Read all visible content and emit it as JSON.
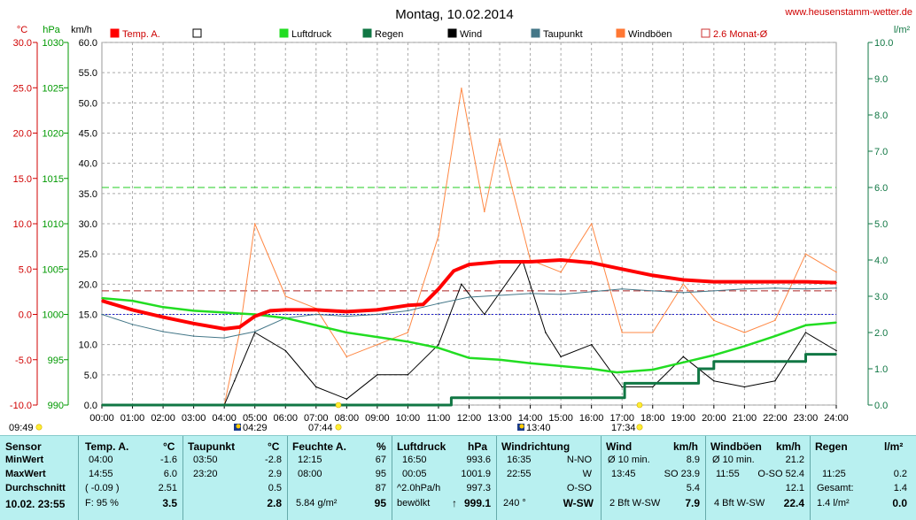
{
  "header": {
    "title": "Montag, 10.02.2014",
    "website": "www.heusenstamm-wetter.de",
    "unit_temp": "°C",
    "unit_press": "hPa",
    "unit_wind": "km/h",
    "unit_rain": "l/m²"
  },
  "legend": [
    {
      "label": "Temp. A.",
      "color": "#ff0000",
      "style": "filled"
    },
    {
      "label": "",
      "color": "#000000",
      "style": "outline"
    },
    {
      "label": "Luftdruck",
      "color": "#22dd22",
      "style": "filled"
    },
    {
      "label": "Regen",
      "color": "#117744",
      "style": "filled"
    },
    {
      "label": "Wind",
      "color": "#000000",
      "style": "filled"
    },
    {
      "label": "Taupunkt",
      "color": "#447788",
      "style": "filled"
    },
    {
      "label": "Windböen",
      "color": "#ff7733",
      "style": "filled"
    },
    {
      "label": "2.6 Monat-Ø",
      "color": "#cc3333",
      "style": "outline"
    }
  ],
  "sun": {
    "rise": "07:44",
    "set": "17:34",
    "moon_rise": "04:29",
    "moon_set": "13:40",
    "left_time": "09:49"
  },
  "chart_data": {
    "type": "line",
    "x_ticks": [
      "00:00",
      "01:00",
      "02:00",
      "03:00",
      "04:00",
      "05:00",
      "06:00",
      "07:00",
      "08:00",
      "09:00",
      "10:00",
      "11:00",
      "12:00",
      "13:00",
      "14:00",
      "15:00",
      "16:00",
      "17:00",
      "18:00",
      "19:00",
      "20:00",
      "21:00",
      "22:00",
      "23:00",
      "24:00"
    ],
    "axes": {
      "temp": {
        "label": "°C",
        "min": -10,
        "max": 30,
        "ticks": [
          "30.0",
          "25.0",
          "20.0",
          "15.0",
          "10.0",
          "5.0",
          "0.0",
          "-5.0",
          "-10.0"
        ]
      },
      "press": {
        "label": "hPa",
        "min": 990,
        "max": 1030,
        "ticks": [
          "1030",
          "1025",
          "1020",
          "1015",
          "1010",
          "1005",
          "1000",
          "995",
          "990"
        ]
      },
      "wind": {
        "label": "km/h",
        "min": 0,
        "max": 60,
        "ticks": [
          "60.0",
          "55.0",
          "50.0",
          "45.0",
          "40.0",
          "35.0",
          "30.0",
          "25.0",
          "20.0",
          "15.0",
          "10.0",
          "5.0",
          "0.0"
        ]
      },
      "rain": {
        "label": "l/m²",
        "min": 0,
        "max": 10,
        "ticks": [
          "10.0",
          "9.0",
          "8.0",
          "7.0",
          "6.0",
          "5.0",
          "4.0",
          "3.0",
          "2.0",
          "1.0",
          "0.0"
        ]
      }
    },
    "reference_lines": {
      "avg_temp_2_6_month": 2.6,
      "freezing": 0.0,
      "pressure_ref_1014": 1014.0
    },
    "series": [
      {
        "name": "Temp. A.",
        "axis": "temp",
        "x": [
          "00:00",
          "01:00",
          "02:00",
          "03:00",
          "04:00",
          "04:30",
          "05:00",
          "05:30",
          "06:00",
          "07:00",
          "08:00",
          "09:00",
          "10:00",
          "10:30",
          "11:00",
          "11:30",
          "12:00",
          "13:00",
          "14:00",
          "15:00",
          "16:00",
          "17:00",
          "18:00",
          "19:00",
          "20:00",
          "21:00",
          "22:00",
          "23:00",
          "24:00"
        ],
        "values": [
          1.5,
          0.5,
          -0.3,
          -1.0,
          -1.6,
          -1.4,
          -0.2,
          0.4,
          0.5,
          0.5,
          0.3,
          0.5,
          1.0,
          1.1,
          2.8,
          4.8,
          5.5,
          5.8,
          5.8,
          6.0,
          5.7,
          5.0,
          4.3,
          3.8,
          3.6,
          3.6,
          3.6,
          3.6,
          3.5
        ]
      },
      {
        "name": "Taupunkt",
        "axis": "temp",
        "x": [
          "00:00",
          "01:00",
          "02:00",
          "03:00",
          "04:00",
          "05:00",
          "06:00",
          "07:00",
          "08:00",
          "09:00",
          "10:00",
          "11:00",
          "12:00",
          "13:00",
          "14:00",
          "15:00",
          "16:00",
          "17:00",
          "18:00",
          "19:00",
          "20:00",
          "21:00",
          "22:00",
          "23:00",
          "24:00"
        ],
        "values": [
          0.0,
          -1.1,
          -1.9,
          -2.4,
          -2.6,
          -1.9,
          -0.4,
          0.0,
          -0.2,
          0.0,
          0.4,
          1.2,
          1.9,
          2.1,
          2.3,
          2.2,
          2.5,
          2.8,
          2.6,
          2.4,
          2.6,
          2.8,
          2.9,
          2.8,
          2.9
        ]
      },
      {
        "name": "Luftdruck",
        "axis": "press",
        "x": [
          "00:00",
          "01:00",
          "02:00",
          "03:00",
          "04:00",
          "05:00",
          "06:00",
          "07:00",
          "08:00",
          "09:00",
          "10:00",
          "11:00",
          "12:00",
          "13:00",
          "14:00",
          "15:00",
          "16:00",
          "16:50",
          "18:00",
          "19:00",
          "20:00",
          "21:00",
          "22:00",
          "23:00",
          "24:00"
        ],
        "values": [
          1001.8,
          1001.5,
          1000.8,
          1000.4,
          1000.2,
          1000.0,
          999.6,
          998.8,
          998.0,
          997.5,
          997.0,
          996.3,
          995.2,
          995.0,
          994.6,
          994.3,
          994.0,
          993.6,
          993.9,
          994.7,
          995.5,
          996.5,
          997.6,
          998.8,
          999.1
        ]
      },
      {
        "name": "Regen",
        "axis": "rain",
        "x": [
          "00:00",
          "11:25",
          "17:05",
          "17:30",
          "18:30",
          "19:30",
          "20:00",
          "21:00",
          "22:00",
          "23:00",
          "23:30",
          "24:00"
        ],
        "values": [
          0.0,
          0.2,
          0.6,
          0.6,
          0.6,
          1.0,
          1.2,
          1.2,
          1.2,
          1.4,
          1.4,
          1.4
        ]
      },
      {
        "name": "Wind",
        "axis": "wind",
        "x": [
          "00:00",
          "04:00",
          "04:20",
          "05:00",
          "06:00",
          "07:00",
          "08:00",
          "09:00",
          "10:00",
          "11:00",
          "11:45",
          "12:30",
          "13:45",
          "14:30",
          "15:00",
          "16:00",
          "17:00",
          "18:00",
          "19:00",
          "20:00",
          "21:00",
          "22:00",
          "23:00",
          "24:00"
        ],
        "values": [
          0.0,
          0.0,
          4.0,
          12.0,
          9.0,
          3.0,
          1.0,
          5.0,
          5.0,
          10.0,
          20.0,
          15.0,
          23.9,
          12.0,
          8.0,
          10.0,
          3.0,
          3.0,
          8.0,
          4.0,
          3.0,
          4.0,
          12.0,
          9.0
        ]
      },
      {
        "name": "Windböen",
        "axis": "wind",
        "x": [
          "00:00",
          "04:00",
          "04:30",
          "05:00",
          "06:00",
          "07:00",
          "08:00",
          "09:00",
          "10:00",
          "11:00",
          "11:45",
          "12:30",
          "13:00",
          "14:00",
          "15:00",
          "16:00",
          "17:00",
          "18:00",
          "19:00",
          "20:00",
          "21:00",
          "22:00",
          "23:00",
          "24:00"
        ],
        "values": [
          0.0,
          0.0,
          12.0,
          30.0,
          18.0,
          16.0,
          8.0,
          10.0,
          12.0,
          28.0,
          52.4,
          32.0,
          44.0,
          24.0,
          22.0,
          30.0,
          12.0,
          12.0,
          20.0,
          14.0,
          12.0,
          14.0,
          25.0,
          22.0
        ]
      }
    ]
  },
  "table": {
    "row_labels": [
      "Sensor",
      "MinWert",
      "MaxWert",
      "Durchschnitt"
    ],
    "date_cell": "10.02.  23:55",
    "temp": {
      "head": "Temp. A.",
      "unit": "°C",
      "min_time": "04:00",
      "min": "-1.6",
      "max_time": "14:55",
      "max": "6.0",
      "avg_paren": "( -0.09 )",
      "avg": "2.51",
      "hum_label": "F: 95 %",
      "current": "3.5"
    },
    "dew": {
      "head": "Taupunkt",
      "unit": "°C",
      "min_time": "03:50",
      "min": "-2.8",
      "max_time": "23:20",
      "max": "2.9",
      "avg": "0.5",
      "current": "2.8"
    },
    "hum": {
      "head": "Feuchte A.",
      "unit": "%",
      "min_time": "12:15",
      "min": "67",
      "max_time": "08:00",
      "max": "95",
      "avg": "87",
      "abs": "5.84 g/m²",
      "current": "95"
    },
    "press": {
      "head": "Luftdruck",
      "unit": "hPa",
      "min_time": "16:50",
      "min": "993.6",
      "max_time": "00:05",
      "max": "1001.9",
      "trend": "^2.0hPa/h",
      "avg": "997.3",
      "weather": "bewölkt",
      "current": "999.1",
      "arrow": "↑"
    },
    "winddir": {
      "head": "Windrichtung",
      "min_time": "16:35",
      "min": "N-NO",
      "max_time": "22:55",
      "max": "W",
      "avg": "O-SO",
      "deg": "240 °",
      "current": "W-SW"
    },
    "wind": {
      "head": "Wind",
      "unit": "km/h",
      "avg_label": "Ø 10 min.",
      "avg10": "8.9",
      "max_time": "13:45",
      "max": "SO 23.9",
      "avg": "5.4",
      "bft": "2 Bft W-SW",
      "current": "7.9"
    },
    "gust": {
      "head": "Windböen",
      "unit": "km/h",
      "avg_label": "Ø 10 min.",
      "avg10": "21.2",
      "max_time": "11:55",
      "max": "O-SO 52.4",
      "avg": "12.1",
      "bft": "4 Bft W-SW",
      "current": "22.4"
    },
    "rain": {
      "head": "Regen",
      "unit": "l/m²",
      "max_time": "11:25",
      "max": "0.2",
      "total_label": "Gesamt:",
      "total": "1.4",
      "current_l": "1.4 l/m²",
      "current": "0.0"
    }
  }
}
